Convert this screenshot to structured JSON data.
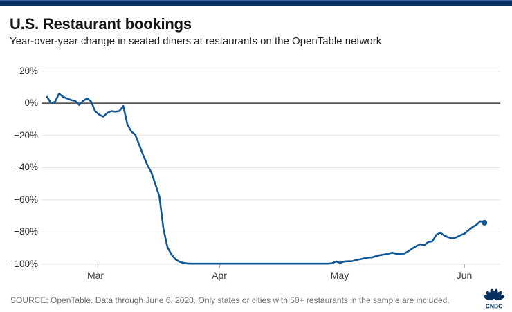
{
  "header": {
    "title": "U.S. Restaurant bookings",
    "subtitle": "Year-over-year change in seated diners at restaurants on the OpenTable network"
  },
  "footer": {
    "source": "SOURCE: OpenTable. Data through June 6, 2020. Only states or cities with 50+ restaurants in the sample are included.",
    "logo_text": "CNBC"
  },
  "colors": {
    "accent_bar": "#0a3161",
    "accent_bar_top_edge": "#3a659f",
    "series_line": "#0f5796",
    "zero_line": "#58585a",
    "gridline": "#e0e0e0",
    "tick": "#9a9a9a",
    "axis_label": "#2e2e2e",
    "source_text": "#6f6f6f",
    "logo_navy": "#07305f"
  },
  "chart_data": {
    "type": "line",
    "title": "U.S. Restaurant bookings",
    "series_name": "Year-over-year change in seated diners (%)",
    "unit": "%",
    "x_range": [
      "Feb 18, 2020",
      "Jun 6, 2020"
    ],
    "ylim": [
      -100,
      20
    ],
    "grid": "horizontal",
    "legend": "none",
    "end_marker": true,
    "x_ticks": [
      "Mar",
      "Apr",
      "May",
      "Jun"
    ],
    "y_ticks": [
      "20%",
      "0%",
      "−20%",
      "−40%",
      "−60%",
      "−80%",
      "−100%"
    ],
    "y_tick_values": [
      20,
      0,
      -20,
      -40,
      -60,
      -80,
      -100
    ],
    "points": [
      [
        "Feb 18",
        4
      ],
      [
        "Feb 19",
        0
      ],
      [
        "Feb 20",
        1
      ],
      [
        "Feb 21",
        6
      ],
      [
        "Feb 22",
        4
      ],
      [
        "Feb 23",
        3
      ],
      [
        "Feb 24",
        2
      ],
      [
        "Feb 25",
        1.5
      ],
      [
        "Feb 26",
        -1
      ],
      [
        "Feb 27",
        1.5
      ],
      [
        "Feb 28",
        3
      ],
      [
        "Feb 29",
        1
      ],
      [
        "Mar 1",
        -5
      ],
      [
        "Mar 2",
        -7
      ],
      [
        "Mar 3",
        -8.3
      ],
      [
        "Mar 4",
        -6
      ],
      [
        "Mar 5",
        -4.8
      ],
      [
        "Mar 6",
        -5.2
      ],
      [
        "Mar 7",
        -4.8
      ],
      [
        "Mar 8",
        -1.7
      ],
      [
        "Mar 9",
        -13
      ],
      [
        "Mar 10",
        -17.5
      ],
      [
        "Mar 11",
        -19.6
      ],
      [
        "Mar 12",
        -26
      ],
      [
        "Mar 13",
        -32.5
      ],
      [
        "Mar 14",
        -38.5
      ],
      [
        "Mar 15",
        -43
      ],
      [
        "Mar 16",
        -50.5
      ],
      [
        "Mar 17",
        -58
      ],
      [
        "Mar 18",
        -78
      ],
      [
        "Mar 19",
        -89.5
      ],
      [
        "Mar 20",
        -94
      ],
      [
        "Mar 21",
        -97
      ],
      [
        "Mar 22",
        -98.5
      ],
      [
        "Mar 23",
        -99.3
      ],
      [
        "Mar 24",
        -99.6
      ],
      [
        "Mar 25",
        -99.7
      ],
      [
        "Mar 26",
        -99.7
      ],
      [
        "Mar 27",
        -99.7
      ],
      [
        "Mar 28",
        -99.7
      ],
      [
        "Mar 29",
        -99.7
      ],
      [
        "Mar 30",
        -99.7
      ],
      [
        "Mar 31",
        -99.7
      ],
      [
        "Apr 1",
        -99.7
      ],
      [
        "Apr 2",
        -99.7
      ],
      [
        "Apr 3",
        -99.7
      ],
      [
        "Apr 4",
        -99.7
      ],
      [
        "Apr 5",
        -99.7
      ],
      [
        "Apr 6",
        -99.7
      ],
      [
        "Apr 7",
        -99.7
      ],
      [
        "Apr 8",
        -99.7
      ],
      [
        "Apr 9",
        -99.7
      ],
      [
        "Apr 10",
        -99.7
      ],
      [
        "Apr 11",
        -99.7
      ],
      [
        "Apr 12",
        -99.7
      ],
      [
        "Apr 13",
        -99.7
      ],
      [
        "Apr 14",
        -99.7
      ],
      [
        "Apr 15",
        -99.7
      ],
      [
        "Apr 16",
        -99.7
      ],
      [
        "Apr 17",
        -99.7
      ],
      [
        "Apr 18",
        -99.7
      ],
      [
        "Apr 19",
        -99.7
      ],
      [
        "Apr 20",
        -99.7
      ],
      [
        "Apr 21",
        -99.7
      ],
      [
        "Apr 22",
        -99.7
      ],
      [
        "Apr 23",
        -99.7
      ],
      [
        "Apr 24",
        -99.7
      ],
      [
        "Apr 25",
        -99.7
      ],
      [
        "Apr 26",
        -99.7
      ],
      [
        "Apr 27",
        -99.7
      ],
      [
        "Apr 28",
        -99.7
      ],
      [
        "Apr 29",
        -99.5
      ],
      [
        "Apr 30",
        -98.3
      ],
      [
        "May 1",
        -99.2
      ],
      [
        "May 2",
        -98.4
      ],
      [
        "May 3",
        -98.2
      ],
      [
        "May 4",
        -98.2
      ],
      [
        "May 5",
        -97.4
      ],
      [
        "May 6",
        -97
      ],
      [
        "May 7",
        -96.4
      ],
      [
        "May 8",
        -96
      ],
      [
        "May 9",
        -95.8
      ],
      [
        "May 10",
        -95
      ],
      [
        "May 11",
        -94.4
      ],
      [
        "May 12",
        -94
      ],
      [
        "May 13",
        -93.5
      ],
      [
        "May 14",
        -92.9
      ],
      [
        "May 15",
        -93.5
      ],
      [
        "May 16",
        -93.5
      ],
      [
        "May 17",
        -93.4
      ],
      [
        "May 18",
        -92
      ],
      [
        "May 19",
        -90.3
      ],
      [
        "May 20",
        -88.8
      ],
      [
        "May 21",
        -87.6
      ],
      [
        "May 22",
        -88.3
      ],
      [
        "May 23",
        -86.2
      ],
      [
        "May 24",
        -85.8
      ],
      [
        "May 25",
        -81.8
      ],
      [
        "May 26",
        -80.4
      ],
      [
        "May 27",
        -82.2
      ],
      [
        "May 28",
        -83.3
      ],
      [
        "May 29",
        -84
      ],
      [
        "May 30",
        -83.3
      ],
      [
        "May 31",
        -82
      ],
      [
        "Jun 1",
        -81
      ],
      [
        "Jun 2",
        -79
      ],
      [
        "Jun 3",
        -77
      ],
      [
        "Jun 4",
        -75.5
      ],
      [
        "Jun 5",
        -73.3
      ],
      [
        "Jun 6",
        -74.2
      ]
    ]
  }
}
